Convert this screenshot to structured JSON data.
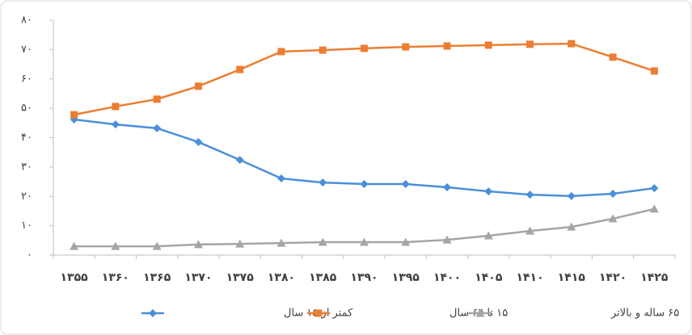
{
  "chart_data": {
    "type": "line",
    "categories": [
      "۱۳۵۵",
      "۱۳۶۰",
      "۱۳۶۵",
      "۱۳۷۰",
      "۱۳۷۵",
      "۱۳۸۰",
      "۱۳۸۵",
      "۱۳۹۰",
      "۱۳۹۵",
      "۱۴۰۰",
      "۱۴۰۵",
      "۱۴۱۰",
      "۱۴۱۵",
      "۱۴۲۰",
      "۱۴۲۵"
    ],
    "series": [
      {
        "name": "کمتر از ۱۵ سال",
        "color": "#4a8fd9",
        "marker": "diamond",
        "values": [
          46.2,
          44.5,
          43.2,
          38.5,
          32.4,
          26.1,
          24.7,
          24.2,
          24.2,
          23.1,
          21.7,
          20.6,
          20.1,
          20.9,
          22.8
        ]
      },
      {
        "name": "۱۵ تا ۶۴ سال",
        "color": "#ed7d31",
        "marker": "square",
        "values": [
          47.8,
          50.6,
          53.1,
          57.5,
          63.2,
          69.3,
          69.8,
          70.4,
          70.9,
          71.2,
          71.5,
          71.8,
          72.0,
          67.4,
          62.7
        ]
      },
      {
        "name": "۶۵ ساله و بالاتر",
        "color": "#a5a5a5",
        "marker": "triangle",
        "values": [
          3.0,
          3.0,
          3.0,
          3.6,
          3.8,
          4.1,
          4.4,
          4.4,
          4.4,
          5.2,
          6.6,
          8.2,
          9.6,
          12.4,
          15.7
        ]
      }
    ],
    "ylim": [
      0,
      80
    ],
    "yticks": [
      {
        "value": 0,
        "label": "۰"
      },
      {
        "value": 10,
        "label": "۱۰"
      },
      {
        "value": 20,
        "label": "۲۰"
      },
      {
        "value": 30,
        "label": "۳۰"
      },
      {
        "value": 40,
        "label": "۴۰"
      },
      {
        "value": 50,
        "label": "۵۰"
      },
      {
        "value": 60,
        "label": "۶۰"
      },
      {
        "value": 70,
        "label": "۷۰"
      },
      {
        "value": 80,
        "label": "۸۰"
      }
    ],
    "legend": "bottom"
  }
}
